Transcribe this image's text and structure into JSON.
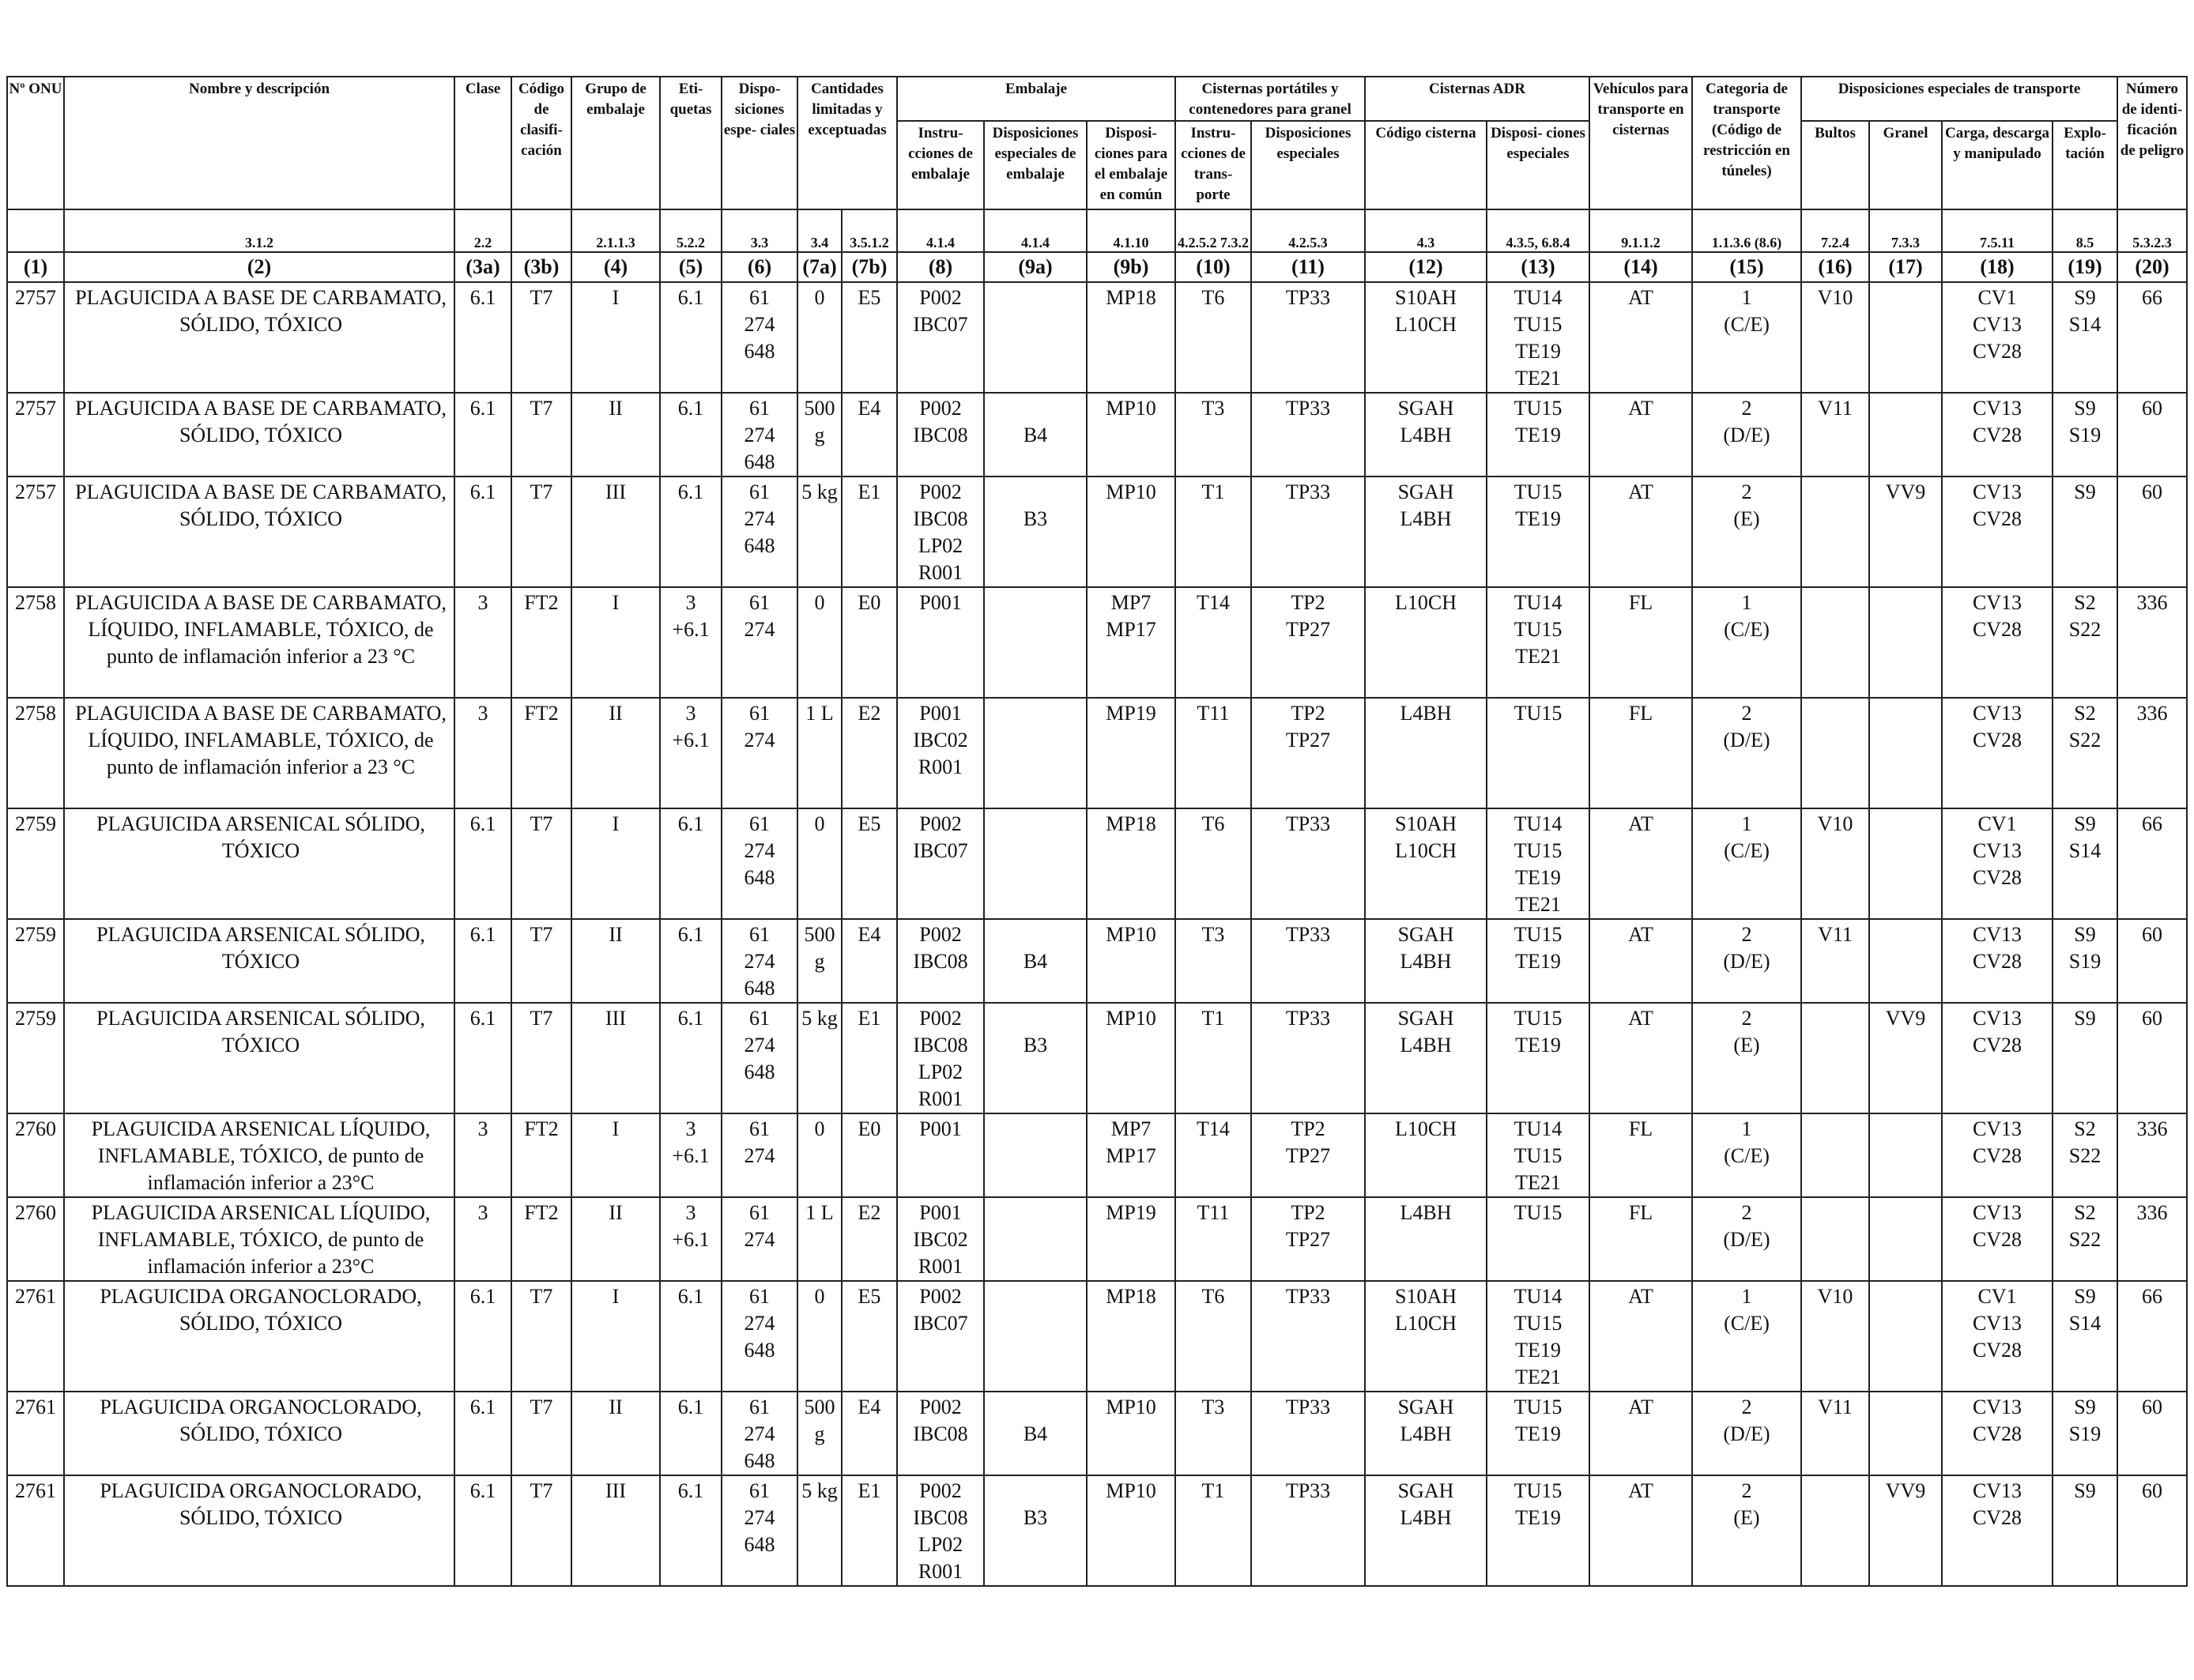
{
  "header": {
    "top": {
      "onu": "Nº ONU",
      "name": "Nombre y descripción",
      "clase": "Clase",
      "codigo": "Código de clasifi- cación",
      "grupo": "Grupo de embalaje",
      "etiquetas": "Eti- quetas",
      "disposiciones": "Dispo- siciones espe- ciales",
      "cantidades": "Cantidades limitadas y exceptuadas",
      "embalaje": "Embalaje",
      "cisternas_port": "Cisternas portátiles y contenedores para granel",
      "cisternas_adr": "Cisternas ADR",
      "vehiculos": "Vehículos para transporte en cisternas",
      "categoria": "Categoria de transporte (Código de restricción en túneles)",
      "disp_transporte": "Disposiciones especiales de transporte",
      "numero": "Número de identi- ficación de peligro"
    },
    "sub": {
      "instrucciones": "Instru- cciones de embalaje",
      "disp_esp_embalaje": "Disposiciones especiales de embalaje",
      "disp_comun": "Disposi- ciones para el embalaje en común",
      "instr_transporte": "Instru- cciones de trans- porte",
      "disp_especiales": "Disposiciones especiales",
      "codigo_cisterna": "Código cisterna",
      "disp_cisterna": "Disposi- ciones especiales",
      "bultos": "Bultos",
      "granel": "Granel",
      "carga": "Carga, descarga y manipulado",
      "explotacion": "Explo- tación"
    },
    "refs": [
      "",
      "3.1.2",
      "2.2",
      "",
      "2.1.1.3",
      "5.2.2",
      "3.3",
      "3.4",
      "3.5.1.2",
      "4.1.4",
      "4.1.4",
      "4.1.10",
      "4.2.5.2 7.3.2",
      "4.2.5.3",
      "4.3",
      "4.3.5, 6.8.4",
      "9.1.1.2",
      "1.1.3.6 (8.6)",
      "7.2.4",
      "7.3.3",
      "7.5.11",
      "8.5",
      "5.3.2.3"
    ],
    "numbers": [
      "(1)",
      "(2)",
      "(3a)",
      "(3b)",
      "(4)",
      "(5)",
      "(6)",
      "(7a)",
      "(7b)",
      "(8)",
      "(9a)",
      "(9b)",
      "(10)",
      "(11)",
      "(12)",
      "(13)",
      "(14)",
      "(15)",
      "(16)",
      "(17)",
      "(18)",
      "(19)",
      "(20)"
    ]
  },
  "rows": [
    [
      [
        "2757"
      ],
      [
        "PLAGUICIDA A BASE DE CARBAMATO, SÓLIDO, TÓXICO"
      ],
      [
        "6.1"
      ],
      [
        "T7"
      ],
      [
        "I"
      ],
      [
        "6.1"
      ],
      [
        "61",
        "274",
        "648"
      ],
      [
        "0"
      ],
      [
        "E5"
      ],
      [
        "P002",
        "IBC07"
      ],
      [],
      [
        "MP18"
      ],
      [
        "T6"
      ],
      [
        "TP33"
      ],
      [
        "S10AH",
        "L10CH"
      ],
      [
        "TU14",
        "TU15",
        "TE19",
        "TE21"
      ],
      [
        "AT"
      ],
      [
        "1",
        "(C/E)"
      ],
      [
        "V10"
      ],
      [],
      [
        "CV1",
        "CV13",
        "CV28"
      ],
      [
        "S9",
        "S14"
      ],
      [
        "66"
      ]
    ],
    [
      [
        "2757"
      ],
      [
        "PLAGUICIDA A BASE DE CARBAMATO, SÓLIDO, TÓXICO"
      ],
      [
        "6.1"
      ],
      [
        "T7"
      ],
      [
        "II"
      ],
      [
        "6.1"
      ],
      [
        "61",
        "274",
        "648"
      ],
      [
        "500",
        "g"
      ],
      [
        "E4"
      ],
      [
        "P002",
        "IBC08"
      ],
      [
        "",
        "B4"
      ],
      [
        "MP10"
      ],
      [
        "T3"
      ],
      [
        "TP33"
      ],
      [
        "SGAH",
        "L4BH"
      ],
      [
        "TU15",
        "TE19"
      ],
      [
        "AT"
      ],
      [
        "2",
        "(D/E)"
      ],
      [
        "V11"
      ],
      [],
      [
        "CV13",
        "CV28"
      ],
      [
        "S9",
        "S19"
      ],
      [
        "60"
      ]
    ],
    [
      [
        "2757"
      ],
      [
        "PLAGUICIDA A BASE DE CARBAMATO, SÓLIDO, TÓXICO"
      ],
      [
        "6.1"
      ],
      [
        "T7"
      ],
      [
        "III"
      ],
      [
        "6.1"
      ],
      [
        "61",
        "274",
        "648"
      ],
      [
        "5 kg"
      ],
      [
        "E1"
      ],
      [
        "P002",
        "IBC08",
        "LP02",
        "R001"
      ],
      [
        "",
        "B3"
      ],
      [
        "MP10"
      ],
      [
        "T1"
      ],
      [
        "TP33"
      ],
      [
        "SGAH",
        "L4BH"
      ],
      [
        "TU15",
        "TE19"
      ],
      [
        "AT"
      ],
      [
        "2",
        "(E)"
      ],
      [],
      [
        "VV9"
      ],
      [
        "CV13",
        "CV28"
      ],
      [
        "S9"
      ],
      [
        "60"
      ]
    ],
    [
      [
        "2758"
      ],
      [
        "PLAGUICIDA A BASE DE CARBAMATO, LÍQUIDO, INFLAMABLE, TÓXICO, de punto de inflamación inferior a 23 °C"
      ],
      [
        "3"
      ],
      [
        "FT2"
      ],
      [
        "I"
      ],
      [
        "3",
        "+6.1"
      ],
      [
        "61",
        "274"
      ],
      [
        "0"
      ],
      [
        "E0"
      ],
      [
        "P001"
      ],
      [],
      [
        "MP7",
        "MP17"
      ],
      [
        "T14"
      ],
      [
        "TP2",
        "TP27"
      ],
      [
        "L10CH"
      ],
      [
        "TU14",
        "TU15",
        "TE21"
      ],
      [
        "FL"
      ],
      [
        "1",
        "(C/E)"
      ],
      [],
      [],
      [
        "CV13",
        "CV28"
      ],
      [
        "S2",
        "S22"
      ],
      [
        "336"
      ]
    ],
    [
      [
        "2758"
      ],
      [
        "PLAGUICIDA A BASE DE CARBAMATO, LÍQUIDO, INFLAMABLE, TÓXICO, de punto de inflamación inferior a 23 °C"
      ],
      [
        "3"
      ],
      [
        "FT2"
      ],
      [
        "II"
      ],
      [
        "3",
        "+6.1"
      ],
      [
        "61",
        "274"
      ],
      [
        "1 L"
      ],
      [
        "E2"
      ],
      [
        "P001",
        "IBC02",
        "R001"
      ],
      [],
      [
        "MP19"
      ],
      [
        "T11"
      ],
      [
        "TP2",
        "TP27"
      ],
      [
        "L4BH"
      ],
      [
        "TU15"
      ],
      [
        "FL"
      ],
      [
        "2",
        "(D/E)"
      ],
      [],
      [],
      [
        "CV13",
        "CV28"
      ],
      [
        "S2",
        "S22"
      ],
      [
        "336"
      ]
    ],
    [
      [
        "2759"
      ],
      [
        "PLAGUICIDA ARSENICAL SÓLIDO, TÓXICO"
      ],
      [
        "6.1"
      ],
      [
        "T7"
      ],
      [
        "I"
      ],
      [
        "6.1"
      ],
      [
        "61",
        "274",
        "648"
      ],
      [
        "0"
      ],
      [
        "E5"
      ],
      [
        "P002",
        "IBC07"
      ],
      [],
      [
        "MP18"
      ],
      [
        "T6"
      ],
      [
        "TP33"
      ],
      [
        "S10AH",
        "L10CH"
      ],
      [
        "TU14",
        "TU15",
        "TE19",
        "TE21"
      ],
      [
        "AT"
      ],
      [
        "1",
        "(C/E)"
      ],
      [
        "V10"
      ],
      [],
      [
        "CV1",
        "CV13",
        "CV28"
      ],
      [
        "S9",
        "S14"
      ],
      [
        "66"
      ]
    ],
    [
      [
        "2759"
      ],
      [
        "PLAGUICIDA ARSENICAL SÓLIDO, TÓXICO"
      ],
      [
        "6.1"
      ],
      [
        "T7"
      ],
      [
        "II"
      ],
      [
        "6.1"
      ],
      [
        "61",
        "274",
        "648"
      ],
      [
        "500",
        "g"
      ],
      [
        "E4"
      ],
      [
        "P002",
        "IBC08"
      ],
      [
        "",
        "B4"
      ],
      [
        "MP10"
      ],
      [
        "T3"
      ],
      [
        "TP33"
      ],
      [
        "SGAH",
        "L4BH"
      ],
      [
        "TU15",
        "TE19"
      ],
      [
        "AT"
      ],
      [
        "2",
        "(D/E)"
      ],
      [
        "V11"
      ],
      [],
      [
        "CV13",
        "CV28"
      ],
      [
        "S9",
        "S19"
      ],
      [
        "60"
      ]
    ],
    [
      [
        "2759"
      ],
      [
        "PLAGUICIDA ARSENICAL SÓLIDO, TÓXICO"
      ],
      [
        "6.1"
      ],
      [
        "T7"
      ],
      [
        "III"
      ],
      [
        "6.1"
      ],
      [
        "61",
        "274",
        "648"
      ],
      [
        "5 kg"
      ],
      [
        "E1"
      ],
      [
        "P002",
        "IBC08",
        "LP02",
        "R001"
      ],
      [
        "",
        "B3"
      ],
      [
        "MP10"
      ],
      [
        "T1"
      ],
      [
        "TP33"
      ],
      [
        "SGAH",
        "L4BH"
      ],
      [
        "TU15",
        "TE19"
      ],
      [
        "AT"
      ],
      [
        "2",
        "(E)"
      ],
      [],
      [
        "VV9"
      ],
      [
        "CV13",
        "CV28"
      ],
      [
        "S9"
      ],
      [
        "60"
      ]
    ],
    [
      [
        "2760"
      ],
      [
        "PLAGUICIDA ARSENICAL LÍQUIDO, INFLAMABLE, TÓXICO, de punto de inflamación inferior a 23°C"
      ],
      [
        "3"
      ],
      [
        "FT2"
      ],
      [
        "I"
      ],
      [
        "3",
        "+6.1"
      ],
      [
        "61",
        "274"
      ],
      [
        "0"
      ],
      [
        "E0"
      ],
      [
        "P001"
      ],
      [],
      [
        "MP7",
        "MP17"
      ],
      [
        "T14"
      ],
      [
        "TP2",
        "TP27"
      ],
      [
        "L10CH"
      ],
      [
        "TU14",
        "TU15",
        "TE21"
      ],
      [
        "FL"
      ],
      [
        "1",
        "(C/E)"
      ],
      [],
      [],
      [
        "CV13",
        "CV28"
      ],
      [
        "S2",
        "S22"
      ],
      [
        "336"
      ]
    ],
    [
      [
        "2760"
      ],
      [
        "PLAGUICIDA ARSENICAL LÍQUIDO, INFLAMABLE, TÓXICO, de punto de inflamación inferior a 23°C"
      ],
      [
        "3"
      ],
      [
        "FT2"
      ],
      [
        "II"
      ],
      [
        "3",
        "+6.1"
      ],
      [
        "61",
        "274"
      ],
      [
        "1 L"
      ],
      [
        "E2"
      ],
      [
        "P001",
        "IBC02",
        "R001"
      ],
      [],
      [
        "MP19"
      ],
      [
        "T11"
      ],
      [
        "TP2",
        "TP27"
      ],
      [
        "L4BH"
      ],
      [
        "TU15"
      ],
      [
        "FL"
      ],
      [
        "2",
        "(D/E)"
      ],
      [],
      [],
      [
        "CV13",
        "CV28"
      ],
      [
        "S2",
        "S22"
      ],
      [
        "336"
      ]
    ],
    [
      [
        "2761"
      ],
      [
        "PLAGUICIDA ORGANOCLORADO, SÓLIDO, TÓXICO"
      ],
      [
        "6.1"
      ],
      [
        "T7"
      ],
      [
        "I"
      ],
      [
        "6.1"
      ],
      [
        "61",
        "274",
        "648"
      ],
      [
        "0"
      ],
      [
        "E5"
      ],
      [
        "P002",
        "IBC07"
      ],
      [],
      [
        "MP18"
      ],
      [
        "T6"
      ],
      [
        "TP33"
      ],
      [
        "S10AH",
        "L10CH"
      ],
      [
        "TU14",
        "TU15",
        "TE19",
        "TE21"
      ],
      [
        "AT"
      ],
      [
        "1",
        "(C/E)"
      ],
      [
        "V10"
      ],
      [],
      [
        "CV1",
        "CV13",
        "CV28"
      ],
      [
        "S9",
        "S14"
      ],
      [
        "66"
      ]
    ],
    [
      [
        "2761"
      ],
      [
        "PLAGUICIDA ORGANOCLORADO, SÓLIDO, TÓXICO"
      ],
      [
        "6.1"
      ],
      [
        "T7"
      ],
      [
        "II"
      ],
      [
        "6.1"
      ],
      [
        "61",
        "274",
        "648"
      ],
      [
        "500",
        "g"
      ],
      [
        "E4"
      ],
      [
        "P002",
        "IBC08"
      ],
      [
        "",
        "B4"
      ],
      [
        "MP10"
      ],
      [
        "T3"
      ],
      [
        "TP33"
      ],
      [
        "SGAH",
        "L4BH"
      ],
      [
        "TU15",
        "TE19"
      ],
      [
        "AT"
      ],
      [
        "2",
        "(D/E)"
      ],
      [
        "V11"
      ],
      [],
      [
        "CV13",
        "CV28"
      ],
      [
        "S9",
        "S19"
      ],
      [
        "60"
      ]
    ],
    [
      [
        "2761"
      ],
      [
        "PLAGUICIDA ORGANOCLORADO, SÓLIDO, TÓXICO"
      ],
      [
        "6.1"
      ],
      [
        "T7"
      ],
      [
        "III"
      ],
      [
        "6.1"
      ],
      [
        "61",
        "274",
        "648"
      ],
      [
        "5 kg"
      ],
      [
        "E1"
      ],
      [
        "P002",
        "IBC08",
        "LP02",
        "R001"
      ],
      [
        "",
        "B3"
      ],
      [
        "MP10"
      ],
      [
        "T1"
      ],
      [
        "TP33"
      ],
      [
        "SGAH",
        "L4BH"
      ],
      [
        "TU15",
        "TE19"
      ],
      [
        "AT"
      ],
      [
        "2",
        "(E)"
      ],
      [],
      [
        "VV9"
      ],
      [
        "CV13",
        "CV28"
      ],
      [
        "S9"
      ],
      [
        "60"
      ]
    ]
  ]
}
